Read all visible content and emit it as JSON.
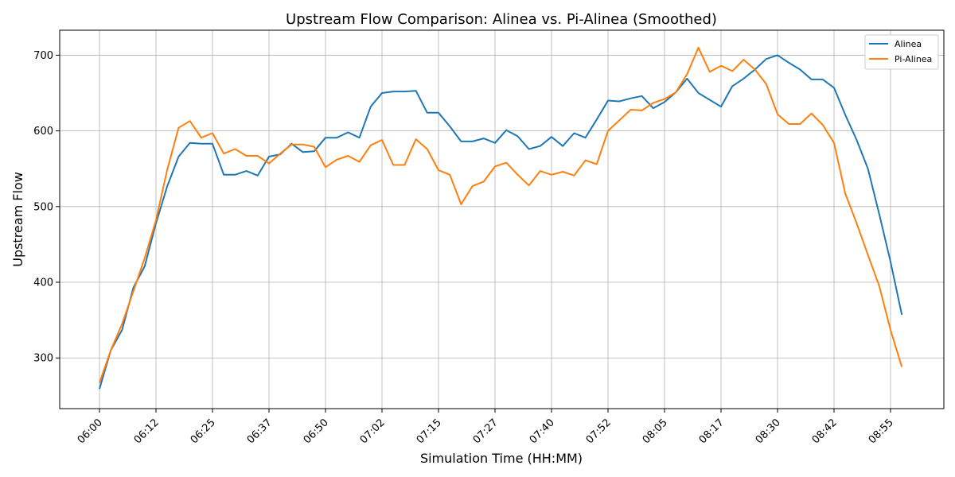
{
  "chart_data": {
    "type": "line",
    "title": "Upstream Flow Comparison: Alinea vs. Pi-Alinea (Smoothed)",
    "xlabel": "Simulation Time (HH:MM)",
    "ylabel": "Upstream Flow",
    "x_tick_labels": [
      "06:00",
      "06:12",
      "06:25",
      "06:37",
      "06:50",
      "07:02",
      "07:15",
      "07:27",
      "07:40",
      "07:52",
      "08:05",
      "08:17",
      "08:30",
      "08:42",
      "08:55"
    ],
    "y_ticks": [
      300,
      400,
      500,
      600,
      700
    ],
    "ylim": [
      233,
      733
    ],
    "grid": true,
    "legend_position": "top-right",
    "series": [
      {
        "name": "Alinea",
        "color": "#1f77b4",
        "values": [
          259,
          310,
          337,
          393,
          421,
          478,
          527,
          566,
          584,
          583,
          583,
          542,
          542,
          547,
          541,
          566,
          569,
          583,
          572,
          573,
          591,
          591,
          598,
          591,
          632,
          650,
          652,
          652,
          653,
          624,
          624,
          606,
          586,
          586,
          590,
          584,
          601,
          593,
          576,
          580,
          592,
          580,
          597,
          591,
          615,
          640,
          639,
          643,
          646,
          630,
          638,
          651,
          669,
          650,
          641,
          632,
          659,
          669,
          681,
          695,
          700,
          690,
          681,
          668,
          668,
          657,
          621,
          588,
          550,
          490,
          427,
          357
        ]
      },
      {
        "name": "Pi-Alinea",
        "color": "#ff7f0e",
        "values": [
          267,
          310,
          345,
          388,
          432,
          482,
          549,
          604,
          613,
          591,
          597,
          570,
          576,
          567,
          567,
          557,
          570,
          582,
          582,
          579,
          552,
          562,
          567,
          559,
          581,
          588,
          555,
          555,
          589,
          576,
          548,
          542,
          503,
          527,
          533,
          553,
          558,
          542,
          528,
          547,
          542,
          546,
          541,
          561,
          556,
          600,
          614,
          628,
          627,
          637,
          642,
          651,
          675,
          710,
          678,
          686,
          679,
          694,
          681,
          662,
          622,
          609,
          609,
          623,
          608,
          584,
          517,
          478,
          436,
          395,
          337,
          288
        ]
      }
    ]
  }
}
